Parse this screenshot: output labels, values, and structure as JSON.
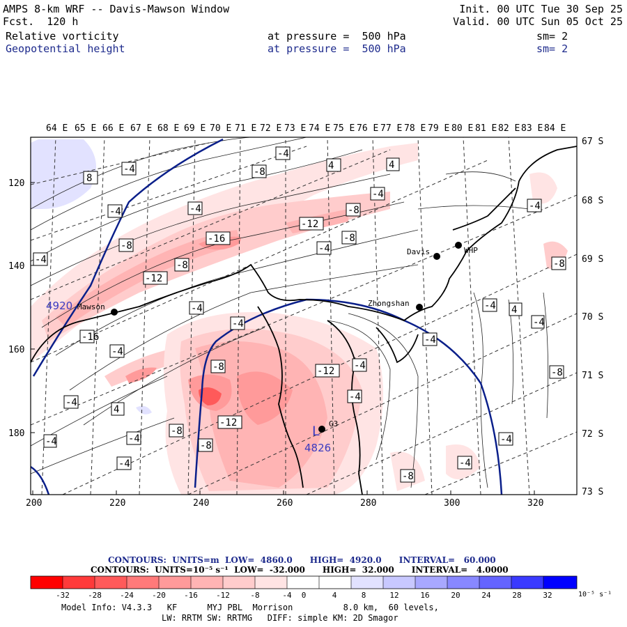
{
  "header": {
    "title": "AMPS 8-km WRF -- Davis-Mawson Window",
    "forecast": "Fcst.  120 h",
    "init": "Init. 00 UTC Tue 30 Sep 25",
    "valid": "Valid. 00 UTC Sun 05 Oct 25",
    "field1": {
      "name": "Relative vorticity",
      "level": "at pressure =  500 hPa",
      "sm": "sm= 2"
    },
    "field2": {
      "name": "Geopotential height",
      "level": "at pressure =  500 hPa",
      "sm": "sm= 2"
    }
  },
  "axes": {
    "top_lon_labels": [
      "64 E",
      "65 E",
      "66 E",
      "67 E",
      "68 E",
      "69 E",
      "70 E",
      "71 E",
      "72 E",
      "73 E",
      "74 E",
      "75 E",
      "76 E",
      "77 E",
      "78 E",
      "79 E",
      "80 E",
      "81 E",
      "82 E",
      "83 E",
      "84 E"
    ],
    "right_lat_labels": [
      "67 S",
      "68 S",
      "69 S",
      "70 S",
      "71 S",
      "72 S",
      "73 S"
    ],
    "bottom_ticks": [
      "200",
      "220",
      "240",
      "260",
      "280",
      "300",
      "320"
    ],
    "left_ticks": [
      "120",
      "140",
      "160",
      "180"
    ]
  },
  "stations": [
    {
      "name": "Mawson"
    },
    {
      "name": "Davis"
    },
    {
      "name": "WHP"
    },
    {
      "name": "Zhongshan"
    },
    {
      "name": "G3"
    }
  ],
  "height_labels": [
    "4920",
    "4826"
  ],
  "low_marker": "L",
  "vorticity_labels": [
    "-4",
    "4",
    "-8",
    "8",
    "-12",
    "-16",
    "-4",
    "-8",
    "-4",
    "4",
    "-12",
    "-8",
    "-4",
    "-4",
    "-8",
    "-12",
    "-8",
    "-16",
    "-4",
    "-4",
    "-8",
    "-4",
    "-4",
    "-4",
    "-4",
    "-4",
    "-8",
    "-12",
    "-8",
    "-4",
    "-4",
    "-4",
    "-8",
    "-4",
    "4",
    "-8",
    "-4",
    "-4",
    "-4",
    "4",
    "-4",
    "-8",
    "-4",
    "-4"
  ],
  "contour_info": {
    "line1": "CONTOURS:  UNITS=m  LOW=  4860.0      HIGH=  4920.0      INTERVAL=   60.000",
    "line2": "CONTOURS:  UNITS=10⁻⁵ s⁻¹  LOW=  -32.000      HIGH=  32.000      INTERVAL=   4.0000"
  },
  "colorbar": {
    "labels": [
      "-32",
      "-28",
      "-24",
      "-20",
      "-16",
      "-12",
      "-8",
      "-4",
      "0",
      "4",
      "8",
      "12",
      "16",
      "20",
      "24",
      "28",
      "32"
    ],
    "unit": "10⁻⁵ s⁻¹",
    "colors": [
      "#ff0000",
      "#ff3a3a",
      "#ff5a5a",
      "#ff7a7a",
      "#ff9a9a",
      "#ffb4b4",
      "#ffcccc",
      "#ffe4e4",
      "#ffffff",
      "#ffffff",
      "#e2e2ff",
      "#c8c8ff",
      "#a8a8ff",
      "#8888ff",
      "#6464ff",
      "#3a3aff",
      "#0000ff"
    ]
  },
  "footer": {
    "line1": "Model Info: V4.3.3   KF      MYJ PBL  Morrison          8.0 km,  60 levels,",
    "line2": "LW: RRTM SW: RRTMG   DIFF: simple KM: 2D Smagor"
  }
}
